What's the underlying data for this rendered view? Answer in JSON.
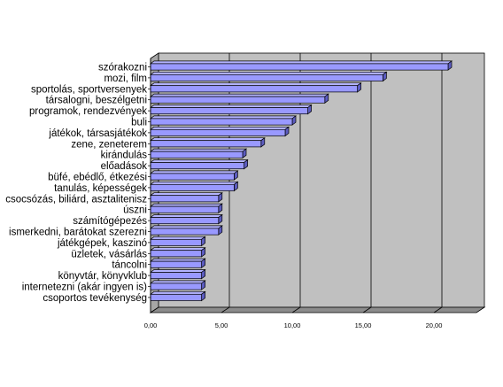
{
  "chart_data": {
    "type": "bar",
    "orientation": "horizontal",
    "style": "3d",
    "categories": [
      "szórakozni",
      "mozi, film",
      "sportolás, sportversenyek",
      "társalogni, beszélgetni",
      "programok, rendezvények",
      "buli",
      "játékok, társasjátékok",
      "zene, zeneterem",
      "kirándulás",
      "előadások",
      "büfé, ebédlő, étkezési",
      "tanulás, képességek",
      "csocsózás, biliárd, asztalitenisz",
      "úszni",
      "számítógépezés",
      "ismerkedni, barátokat szerezni",
      "játékgépek, kaszinó",
      "üzletek, vásárlás",
      "táncolni",
      "könyvtár, könyvklub",
      "internetezni (akár ingyen is)",
      "csoportos tevékenység"
    ],
    "values": [
      21.0,
      16.4,
      14.6,
      12.3,
      11.1,
      10.0,
      9.5,
      7.8,
      6.5,
      6.6,
      5.9,
      5.9,
      4.8,
      4.8,
      4.8,
      4.8,
      3.6,
      3.6,
      3.6,
      3.6,
      3.6,
      3.6
    ],
    "xlim": [
      0,
      23
    ],
    "xticks": [
      "0,00",
      "5,00",
      "10,00",
      "15,00",
      "20,00"
    ],
    "xtick_values": [
      0,
      5,
      10,
      15,
      20
    ],
    "grid": true,
    "colors": {
      "bar_front": "#9999ff",
      "bar_top": "#b3b3ff",
      "bar_side": "#5c5cbf",
      "plot_bg": "#c0c0c0",
      "wall_side": "#a6a6a6",
      "floor": "#8c8c8c",
      "gridline": "#000000"
    }
  }
}
